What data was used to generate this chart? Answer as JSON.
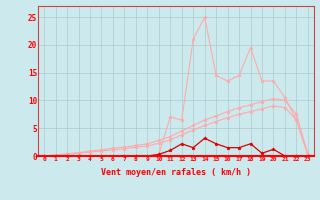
{
  "bg_color": "#cce9ee",
  "grid_color": "#aacccc",
  "x_labels": [
    "0",
    "1",
    "2",
    "3",
    "4",
    "5",
    "6",
    "7",
    "8",
    "9",
    "10",
    "11",
    "12",
    "13",
    "14",
    "15",
    "16",
    "17",
    "18",
    "19",
    "20",
    "21",
    "22",
    "23"
  ],
  "x_values": [
    0,
    1,
    2,
    3,
    4,
    5,
    6,
    7,
    8,
    9,
    10,
    11,
    12,
    13,
    14,
    15,
    16,
    17,
    18,
    19,
    20,
    21,
    22,
    23
  ],
  "line_spike_y": [
    0,
    0,
    0,
    0,
    0,
    0,
    0,
    0,
    0,
    0,
    0.3,
    7.0,
    6.5,
    21.0,
    25.0,
    14.5,
    13.5,
    14.5,
    19.5,
    13.5,
    13.5,
    10.5,
    6.5,
    0.2
  ],
  "line_upper_y": [
    0,
    0.2,
    0.4,
    0.6,
    0.9,
    1.1,
    1.4,
    1.6,
    1.9,
    2.2,
    2.8,
    3.5,
    4.5,
    5.5,
    6.5,
    7.2,
    8.0,
    8.7,
    9.2,
    9.8,
    10.3,
    10.0,
    7.5,
    0.3
  ],
  "line_lower_y": [
    0,
    0.15,
    0.3,
    0.5,
    0.7,
    0.9,
    1.1,
    1.3,
    1.6,
    1.8,
    2.3,
    2.9,
    3.8,
    4.7,
    5.5,
    6.2,
    6.9,
    7.5,
    8.0,
    8.5,
    9.0,
    8.7,
    6.5,
    0.2
  ],
  "line_bottom_y": [
    0,
    0,
    0,
    0,
    0,
    0,
    0,
    0,
    0,
    0,
    0.3,
    1.0,
    2.2,
    1.5,
    3.2,
    2.2,
    1.5,
    1.5,
    2.2,
    0.5,
    1.2,
    0,
    0,
    0
  ],
  "spike_color": "#ffaaaa",
  "upper_color": "#ffaaaa",
  "lower_color": "#ffaaaa",
  "bottom_color": "#dd0000",
  "xlabel": "Vent moyen/en rafales ( km/h )",
  "ylim": [
    0,
    27
  ],
  "yticks": [
    0,
    5,
    10,
    15,
    20,
    25
  ],
  "xlim": [
    -0.5,
    23.5
  ]
}
